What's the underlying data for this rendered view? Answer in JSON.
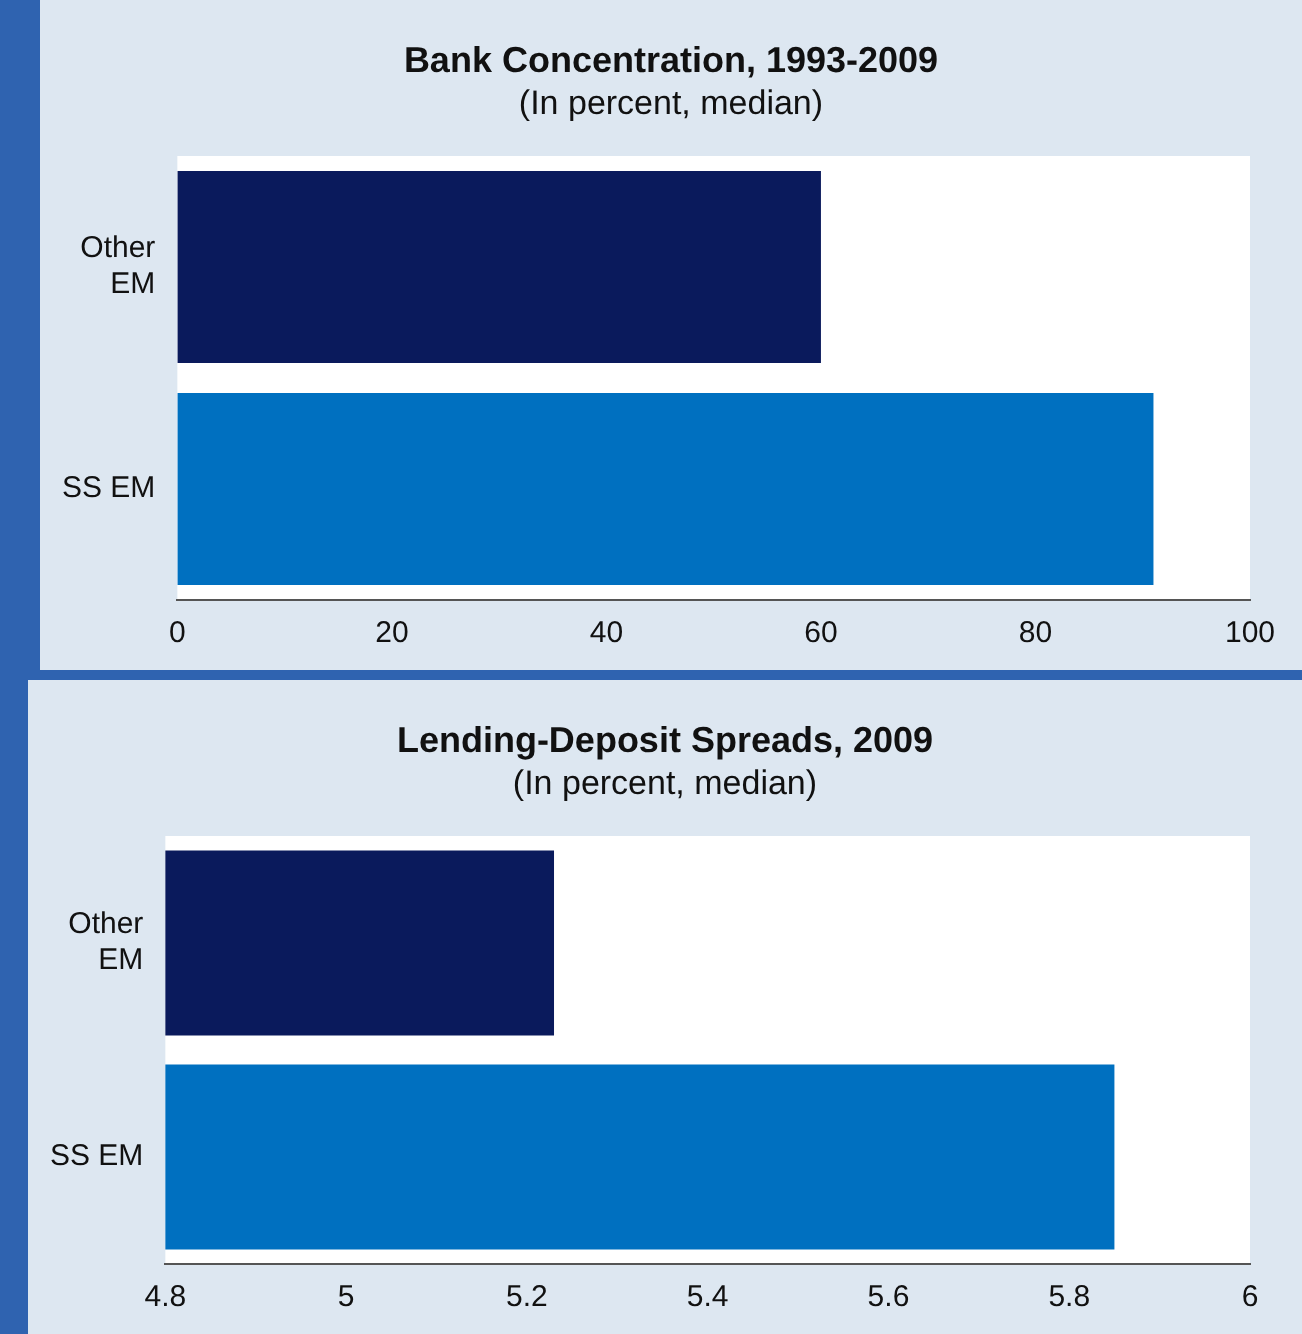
{
  "chart_data": [
    {
      "type": "bar",
      "orientation": "horizontal",
      "title": "Bank Concentration, 1993-2009",
      "subtitle": "(In percent, median)",
      "categories": [
        "Other\nEM",
        "SS EM"
      ],
      "values": [
        60,
        91
      ],
      "colors": [
        "#0a1a5c",
        "#0070c0"
      ],
      "xlim": [
        0,
        100
      ],
      "xticks": [
        0,
        20,
        40,
        60,
        80,
        100
      ],
      "grid": false
    },
    {
      "type": "bar",
      "orientation": "horizontal",
      "title": "Lending-Deposit Spreads, 2009",
      "subtitle": "(In percent, median)",
      "categories": [
        "Other\nEM",
        "SS EM"
      ],
      "values": [
        5.23,
        5.85
      ],
      "colors": [
        "#0a1a5c",
        "#0070c0"
      ],
      "xlim": [
        4.8,
        6
      ],
      "xticks": [
        4.8,
        5,
        5.2,
        5.4,
        5.6,
        5.8,
        6
      ],
      "grid": false
    }
  ]
}
